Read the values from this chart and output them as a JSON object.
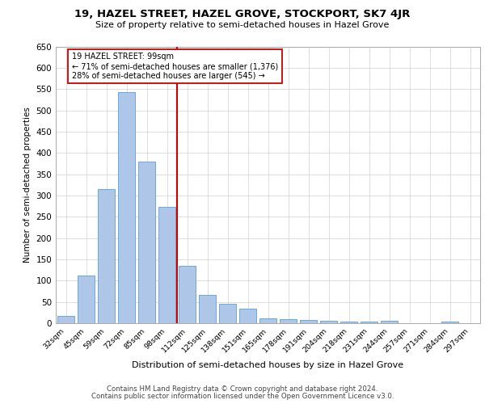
{
  "title1": "19, HAZEL STREET, HAZEL GROVE, STOCKPORT, SK7 4JR",
  "title2": "Size of property relative to semi-detached houses in Hazel Grove",
  "xlabel": "Distribution of semi-detached houses by size in Hazel Grove",
  "ylabel": "Number of semi-detached properties",
  "footnote1": "Contains HM Land Registry data © Crown copyright and database right 2024.",
  "footnote2": "Contains public sector information licensed under the Open Government Licence v3.0.",
  "categories": [
    "32sqm",
    "45sqm",
    "59sqm",
    "72sqm",
    "85sqm",
    "98sqm",
    "112sqm",
    "125sqm",
    "138sqm",
    "151sqm",
    "165sqm",
    "178sqm",
    "191sqm",
    "204sqm",
    "218sqm",
    "231sqm",
    "244sqm",
    "257sqm",
    "271sqm",
    "284sqm",
    "297sqm"
  ],
  "values": [
    18,
    112,
    315,
    543,
    380,
    273,
    135,
    67,
    45,
    34,
    12,
    10,
    8,
    5,
    4,
    3,
    6,
    0,
    0,
    4,
    0
  ],
  "bar_color": "#aec6e8",
  "bar_edge_color": "#5a9fd4",
  "grid_color": "#d0d0d0",
  "property_bin_index": 5,
  "annotation_title": "19 HAZEL STREET: 99sqm",
  "annotation_line1": "← 71% of semi-detached houses are smaller (1,376)",
  "annotation_line2": "28% of semi-detached houses are larger (545) →",
  "vline_color": "#cc0000",
  "annotation_box_color": "#ffffff",
  "annotation_box_edge": "#cc0000",
  "ylim": [
    0,
    650
  ],
  "yticks": [
    0,
    50,
    100,
    150,
    200,
    250,
    300,
    350,
    400,
    450,
    500,
    550,
    600,
    650
  ],
  "title1_fontsize": 9.5,
  "title2_fontsize": 8.0,
  "xlabel_fontsize": 8.0,
  "ylabel_fontsize": 7.5,
  "tick_fontsize": 7.5,
  "xtick_fontsize": 6.8,
  "footnote_fontsize": 6.2
}
